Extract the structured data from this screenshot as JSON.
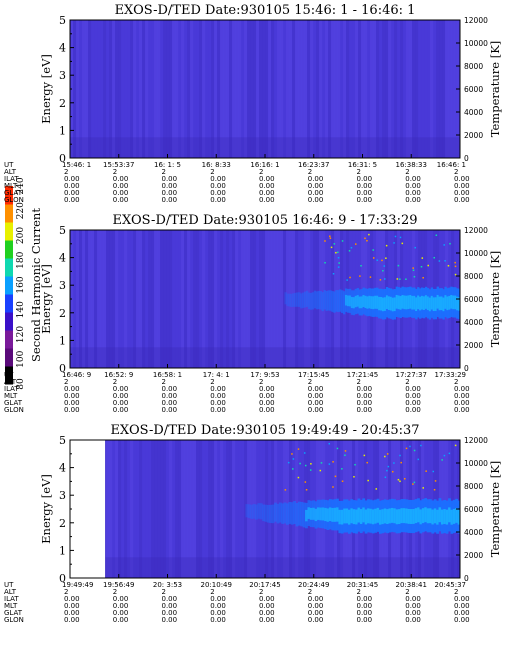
{
  "colorbar": {
    "label": "Second Harmonic Current",
    "ticks": [
      "80",
      "100",
      "120",
      "140",
      "160",
      "180",
      "200",
      "220",
      "240"
    ],
    "colors": [
      "#000000",
      "#5a0a7a",
      "#7a1a9a",
      "#3a10c8",
      "#1a40ff",
      "#0aa0ff",
      "#10d8b0",
      "#20d020",
      "#e8f000",
      "#ff9000",
      "#ff2a00"
    ]
  },
  "row_labels": [
    "UT",
    "ALT",
    "ILAT",
    "MLT",
    "GLAT",
    "GLON"
  ],
  "chart_data": [
    {
      "type": "heatmap",
      "title": "EXOS-D/TED   Date:930105  15:46: 1 - 16:46: 1",
      "ylabel": "Energy [eV]",
      "ylabel_right": "Temperature [K]",
      "ylim": [
        0,
        5
      ],
      "ylim_right": [
        0,
        12000
      ],
      "yticks": [
        "0",
        "1",
        "2",
        "3",
        "4",
        "5"
      ],
      "yticks_right": [
        "0",
        "2000",
        "4000",
        "6000",
        "8000",
        "10000",
        "12000"
      ],
      "x": [
        "15:46: 1",
        "15:53:37",
        "16: 1: 5",
        "16: 8:33",
        "16:16: 1",
        "16:23:37",
        "16:31: 5",
        "16:38:33",
        "16:46: 1"
      ],
      "alt": [
        "2",
        "2",
        "2",
        "2",
        "2",
        "2",
        "2",
        "2",
        "2"
      ],
      "ilat": [
        "0.00",
        "0.00",
        "0.00",
        "0.00",
        "0.00",
        "0.00",
        "0.00",
        "0.00",
        "0.00"
      ],
      "mlt": [
        "0.00",
        "0.00",
        "0.00",
        "0.00",
        "0.00",
        "0.00",
        "0.00",
        "0.00",
        "0.00"
      ],
      "glat": [
        "0.00",
        "0.00",
        "0.00",
        "0.00",
        "0.00",
        "0.00",
        "0.00",
        "0.00",
        "0.00"
      ],
      "glon": [
        "0.00",
        "0.00",
        "0.00",
        "0.00",
        "0.00",
        "0.00",
        "0.00",
        "0.00",
        "0.00"
      ],
      "background_color": "#4a3ad8",
      "enhanced_band": null,
      "data_gap_end": 0
    },
    {
      "type": "heatmap",
      "title": "EXOS-D/TED   Date:930105  16:46: 9 - 17:33:29",
      "ylabel": "Energy [eV]",
      "ylabel_right": "Temperature [K]",
      "ylim": [
        0,
        5
      ],
      "ylim_right": [
        0,
        12000
      ],
      "yticks": [
        "0",
        "1",
        "2",
        "3",
        "4",
        "5"
      ],
      "yticks_right": [
        "0",
        "2000",
        "4000",
        "6000",
        "8000",
        "10000",
        "12000"
      ],
      "x": [
        "16:46: 9",
        "16:52: 9",
        "16:58: 1",
        "17: 4: 1",
        "17: 9:53",
        "17:15:45",
        "17:21:45",
        "17:27:37",
        "17:33:29"
      ],
      "alt": [
        "2",
        "2",
        "2",
        "2",
        "2",
        "2",
        "2",
        "2",
        "2"
      ],
      "ilat": [
        "0.00",
        "0.00",
        "0.00",
        "0.00",
        "0.00",
        "0.00",
        "0.00",
        "0.00",
        "0.00"
      ],
      "mlt": [
        "0.00",
        "0.00",
        "0.00",
        "0.00",
        "0.00",
        "0.00",
        "0.00",
        "0.00",
        "0.00"
      ],
      "glat": [
        "0.00",
        "0.00",
        "0.00",
        "0.00",
        "0.00",
        "0.00",
        "0.00",
        "0.00",
        "0.00"
      ],
      "glon": [
        "0.00",
        "0.00",
        "0.00",
        "0.00",
        "0.00",
        "0.00",
        "0.00",
        "0.00",
        "0.00"
      ],
      "background_color": "#4a3ad8",
      "enhanced_band": {
        "start_fraction": 0.55,
        "peak_fraction": 0.8,
        "energy_center": 2.5,
        "energy_halfwidth": 0.55,
        "color": "#1a70ff"
      },
      "data_gap_end": 0
    },
    {
      "type": "heatmap",
      "title": "EXOS-D/TED   Date:930105  19:49:49 - 20:45:37",
      "ylabel": "Energy [eV]",
      "ylabel_right": "Temperature [K]",
      "ylim": [
        0,
        5
      ],
      "ylim_right": [
        0,
        12000
      ],
      "yticks": [
        "0",
        "1",
        "2",
        "3",
        "4",
        "5"
      ],
      "yticks_right": [
        "0",
        "2000",
        "4000",
        "6000",
        "8000",
        "10000",
        "12000"
      ],
      "x": [
        "19:49:49",
        "19:56:49",
        "20: 3:53",
        "20:10:49",
        "20:17:45",
        "20:24:49",
        "20:31:45",
        "20:38:41",
        "20:45:37"
      ],
      "alt": [
        "2",
        "2",
        "2",
        "2",
        "2",
        "2",
        "2",
        "2",
        "2"
      ],
      "ilat": [
        "0.00",
        "0.00",
        "0.00",
        "0.00",
        "0.00",
        "0.00",
        "0.00",
        "0.00",
        "0.00"
      ],
      "mlt": [
        "0.00",
        "0.00",
        "0.00",
        "0.00",
        "0.00",
        "0.00",
        "0.00",
        "0.00",
        "0.00"
      ],
      "glat": [
        "0.00",
        "0.00",
        "0.00",
        "0.00",
        "0.00",
        "0.00",
        "0.00",
        "0.00",
        "0.00"
      ],
      "glon": [
        "0.00",
        "0.00",
        "0.00",
        "0.00",
        "0.00",
        "0.00",
        "0.00",
        "0.00",
        "0.00"
      ],
      "background_color": "#4a3ad8",
      "enhanced_band": {
        "start_fraction": 0.45,
        "peak_fraction": 0.7,
        "energy_center": 2.4,
        "energy_halfwidth": 0.6,
        "color": "#1a70ff"
      },
      "data_gap_end": 0.09
    }
  ]
}
